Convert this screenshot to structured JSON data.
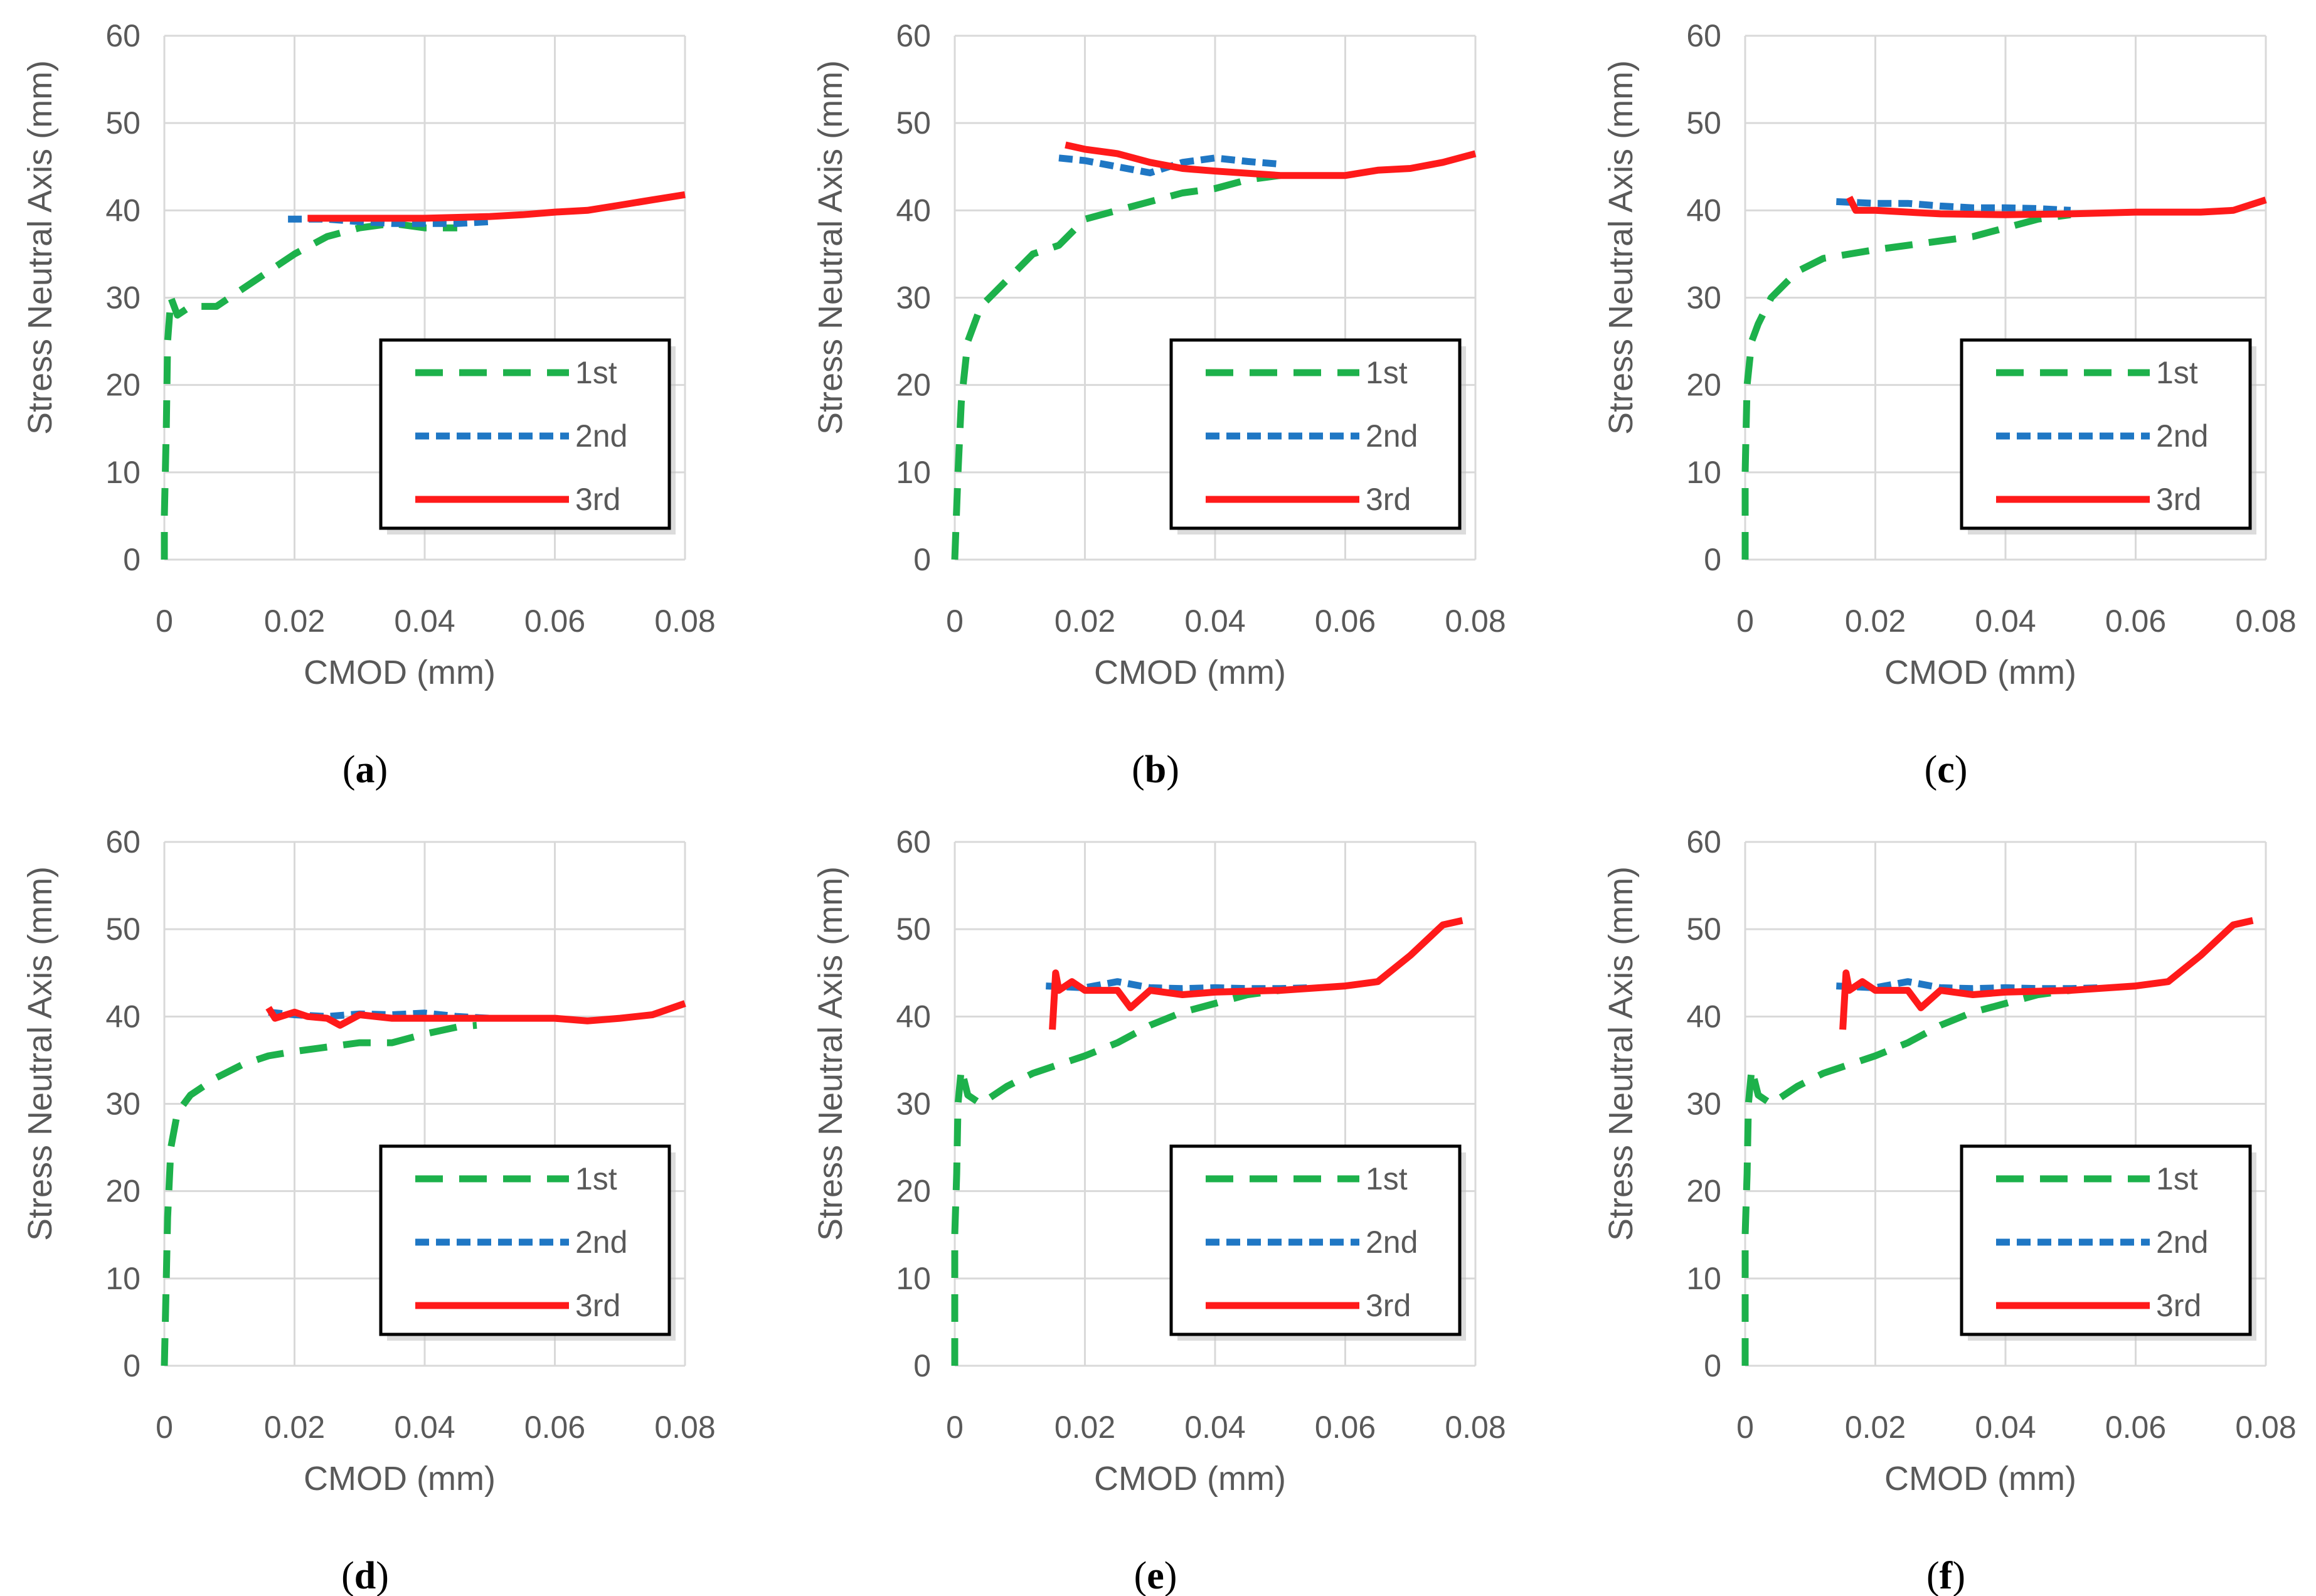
{
  "colors": {
    "first": "#1db14b",
    "second": "#1f77c4",
    "third": "#ff1a1a",
    "grid": "#d9d9d9",
    "text": "#595959"
  },
  "chart_data": [
    {
      "type": "line",
      "panel": "a",
      "xlabel": "CMOD (mm)",
      "ylabel": "Stress Neutral Axis (mm)",
      "xlim": [
        0,
        0.08
      ],
      "ylim": [
        0,
        60
      ],
      "xticks": [
        "0",
        "0.02",
        "0.04",
        "0.06",
        "0.08"
      ],
      "yticks": [
        "0",
        "10",
        "20",
        "30",
        "40",
        "50",
        "60"
      ],
      "legend_position": "bottom-right",
      "series": [
        {
          "name": "1st",
          "points": [
            [
              0,
              0
            ],
            [
              0,
              5
            ],
            [
              0.0003,
              15
            ],
            [
              0.0005,
              25
            ],
            [
              0.001,
              30
            ],
            [
              0.002,
              28
            ],
            [
              0.004,
              29
            ],
            [
              0.008,
              29
            ],
            [
              0.012,
              31
            ],
            [
              0.016,
              33
            ],
            [
              0.02,
              35
            ],
            [
              0.025,
              37
            ],
            [
              0.03,
              38
            ],
            [
              0.035,
              38.5
            ],
            [
              0.04,
              38
            ],
            [
              0.045,
              38
            ]
          ]
        },
        {
          "name": "2nd",
          "points": [
            [
              0.019,
              39
            ],
            [
              0.025,
              39
            ],
            [
              0.03,
              38.7
            ],
            [
              0.035,
              38.5
            ],
            [
              0.04,
              38.5
            ],
            [
              0.045,
              38.5
            ],
            [
              0.05,
              38.7
            ]
          ]
        },
        {
          "name": "3rd",
          "points": [
            [
              0.022,
              39.1
            ],
            [
              0.03,
              39.1
            ],
            [
              0.04,
              39.1
            ],
            [
              0.05,
              39.3
            ],
            [
              0.055,
              39.5
            ],
            [
              0.06,
              39.8
            ],
            [
              0.065,
              40
            ],
            [
              0.07,
              40.6
            ],
            [
              0.075,
              41.2
            ],
            [
              0.08,
              41.8
            ]
          ]
        }
      ]
    },
    {
      "type": "line",
      "panel": "b",
      "xlabel": "CMOD (mm)",
      "ylabel": "Stress Neutral Axis (mm)",
      "xlim": [
        0,
        0.08
      ],
      "ylim": [
        0,
        60
      ],
      "xticks": [
        "0",
        "0.02",
        "0.04",
        "0.06",
        "0.08"
      ],
      "yticks": [
        "0",
        "10",
        "20",
        "30",
        "40",
        "50",
        "60"
      ],
      "legend_position": "bottom-right",
      "series": [
        {
          "name": "1st",
          "points": [
            [
              0,
              0
            ],
            [
              0.0005,
              10
            ],
            [
              0.001,
              18
            ],
            [
              0.002,
              25
            ],
            [
              0.004,
              29
            ],
            [
              0.008,
              32
            ],
            [
              0.012,
              35
            ],
            [
              0.016,
              36
            ],
            [
              0.02,
              39
            ],
            [
              0.025,
              40
            ],
            [
              0.03,
              41
            ],
            [
              0.035,
              42
            ],
            [
              0.04,
              42.5
            ],
            [
              0.045,
              43.5
            ],
            [
              0.05,
              44
            ]
          ]
        },
        {
          "name": "2nd",
          "points": [
            [
              0.016,
              46
            ],
            [
              0.02,
              45.7
            ],
            [
              0.025,
              45
            ],
            [
              0.03,
              44.3
            ],
            [
              0.035,
              45.5
            ],
            [
              0.04,
              46
            ],
            [
              0.045,
              45.6
            ],
            [
              0.05,
              45.3
            ]
          ]
        },
        {
          "name": "3rd",
          "points": [
            [
              0.017,
              47.5
            ],
            [
              0.02,
              47
            ],
            [
              0.025,
              46.5
            ],
            [
              0.03,
              45.5
            ],
            [
              0.035,
              44.8
            ],
            [
              0.04,
              44.5
            ],
            [
              0.05,
              44
            ],
            [
              0.06,
              44
            ],
            [
              0.065,
              44.6
            ],
            [
              0.07,
              44.8
            ],
            [
              0.075,
              45.5
            ],
            [
              0.08,
              46.5
            ]
          ]
        }
      ]
    },
    {
      "type": "line",
      "panel": "c",
      "xlabel": "CMOD (mm)",
      "ylabel": "Stress Neutral Axis (mm)",
      "xlim": [
        0,
        0.08
      ],
      "ylim": [
        0,
        60
      ],
      "xticks": [
        "0",
        "0.02",
        "0.04",
        "0.06",
        "0.08"
      ],
      "yticks": [
        "0",
        "10",
        "20",
        "30",
        "40",
        "50",
        "60"
      ],
      "legend_position": "bottom-right",
      "series": [
        {
          "name": "1st",
          "points": [
            [
              0,
              0
            ],
            [
              0,
              10
            ],
            [
              0.0003,
              20
            ],
            [
              0.001,
              25
            ],
            [
              0.002,
              27
            ],
            [
              0.004,
              30
            ],
            [
              0.008,
              33
            ],
            [
              0.012,
              34.5
            ],
            [
              0.016,
              35
            ],
            [
              0.02,
              35.5
            ],
            [
              0.025,
              36
            ],
            [
              0.03,
              36.5
            ],
            [
              0.035,
              37
            ],
            [
              0.04,
              38
            ],
            [
              0.045,
              39
            ],
            [
              0.05,
              39.5
            ]
          ]
        },
        {
          "name": "2nd",
          "points": [
            [
              0.014,
              41
            ],
            [
              0.02,
              40.8
            ],
            [
              0.025,
              40.8
            ],
            [
              0.03,
              40.5
            ],
            [
              0.035,
              40.3
            ],
            [
              0.04,
              40.3
            ],
            [
              0.045,
              40.2
            ],
            [
              0.05,
              40
            ]
          ]
        },
        {
          "name": "3rd",
          "points": [
            [
              0.016,
              41.5
            ],
            [
              0.017,
              40
            ],
            [
              0.02,
              40
            ],
            [
              0.03,
              39.6
            ],
            [
              0.04,
              39.5
            ],
            [
              0.05,
              39.6
            ],
            [
              0.06,
              39.8
            ],
            [
              0.065,
              39.8
            ],
            [
              0.07,
              39.8
            ],
            [
              0.075,
              40
            ],
            [
              0.08,
              41.2
            ]
          ]
        }
      ]
    },
    {
      "type": "line",
      "panel": "d",
      "xlabel": "CMOD (mm)",
      "ylabel": "Stress Neutral Axis (mm)",
      "xlim": [
        0,
        0.08
      ],
      "ylim": [
        0,
        60
      ],
      "xticks": [
        "0",
        "0.02",
        "0.04",
        "0.06",
        "0.08"
      ],
      "yticks": [
        "0",
        "10",
        "20",
        "30",
        "40",
        "50",
        "60"
      ],
      "legend_position": "bottom-right",
      "series": [
        {
          "name": "1st",
          "points": [
            [
              0,
              0
            ],
            [
              0.0003,
              10
            ],
            [
              0.0005,
              17
            ],
            [
              0.001,
              25
            ],
            [
              0.002,
              29
            ],
            [
              0.004,
              31
            ],
            [
              0.008,
              33
            ],
            [
              0.012,
              34.5
            ],
            [
              0.016,
              35.5
            ],
            [
              0.02,
              36
            ],
            [
              0.025,
              36.5
            ],
            [
              0.03,
              37
            ],
            [
              0.035,
              37
            ],
            [
              0.04,
              38
            ],
            [
              0.045,
              38.8
            ],
            [
              0.048,
              39
            ]
          ]
        },
        {
          "name": "2nd",
          "points": [
            [
              0.016,
              40.5
            ],
            [
              0.02,
              40.2
            ],
            [
              0.025,
              40
            ],
            [
              0.03,
              40.3
            ],
            [
              0.035,
              40.2
            ],
            [
              0.04,
              40.4
            ],
            [
              0.045,
              40
            ],
            [
              0.05,
              39.8
            ]
          ]
        },
        {
          "name": "3rd",
          "points": [
            [
              0.016,
              41
            ],
            [
              0.017,
              39.8
            ],
            [
              0.02,
              40.5
            ],
            [
              0.022,
              40
            ],
            [
              0.025,
              39.8
            ],
            [
              0.027,
              39
            ],
            [
              0.03,
              40.2
            ],
            [
              0.035,
              39.8
            ],
            [
              0.04,
              39.8
            ],
            [
              0.05,
              39.8
            ],
            [
              0.06,
              39.8
            ],
            [
              0.065,
              39.5
            ],
            [
              0.07,
              39.8
            ],
            [
              0.075,
              40.2
            ],
            [
              0.08,
              41.5
            ]
          ]
        }
      ]
    },
    {
      "type": "line",
      "panel": "e",
      "xlabel": "CMOD (mm)",
      "ylabel": "Stress Neutral Axis (mm)",
      "xlim": [
        0,
        0.08
      ],
      "ylim": [
        0,
        60
      ],
      "xticks": [
        "0",
        "0.02",
        "0.04",
        "0.06",
        "0.08"
      ],
      "yticks": [
        "0",
        "10",
        "20",
        "30",
        "40",
        "50",
        "60"
      ],
      "legend_position": "bottom-right",
      "series": [
        {
          "name": "1st",
          "points": [
            [
              0,
              0
            ],
            [
              0,
              15
            ],
            [
              0.0003,
              22
            ],
            [
              0.0005,
              30
            ],
            [
              0.001,
              34
            ],
            [
              0.002,
              31
            ],
            [
              0.004,
              30
            ],
            [
              0.008,
              32
            ],
            [
              0.012,
              33.5
            ],
            [
              0.016,
              34.5
            ],
            [
              0.02,
              35.5
            ],
            [
              0.025,
              37
            ],
            [
              0.03,
              39
            ],
            [
              0.035,
              40.5
            ],
            [
              0.04,
              41.5
            ],
            [
              0.045,
              42.5
            ],
            [
              0.05,
              43
            ]
          ]
        },
        {
          "name": "2nd",
          "points": [
            [
              0.014,
              43.5
            ],
            [
              0.02,
              43.3
            ],
            [
              0.025,
              44
            ],
            [
              0.03,
              43.3
            ],
            [
              0.035,
              43.2
            ],
            [
              0.04,
              43.3
            ],
            [
              0.045,
              43.2
            ],
            [
              0.05,
              43.2
            ],
            [
              0.055,
              43.3
            ]
          ]
        },
        {
          "name": "3rd",
          "points": [
            [
              0.015,
              38.5
            ],
            [
              0.0155,
              45
            ],
            [
              0.016,
              43
            ],
            [
              0.018,
              44
            ],
            [
              0.02,
              43
            ],
            [
              0.025,
              43
            ],
            [
              0.027,
              41
            ],
            [
              0.03,
              43
            ],
            [
              0.035,
              42.5
            ],
            [
              0.04,
              42.8
            ],
            [
              0.05,
              43
            ],
            [
              0.06,
              43.5
            ],
            [
              0.065,
              44
            ],
            [
              0.07,
              47
            ],
            [
              0.075,
              50.5
            ],
            [
              0.078,
              51
            ]
          ]
        }
      ]
    },
    {
      "type": "line",
      "panel": "f",
      "xlabel": "CMOD (mm)",
      "ylabel": "Stress Neutral Axis (mm)",
      "xlim": [
        0,
        0.08
      ],
      "ylim": [
        0,
        60
      ],
      "xticks": [
        "0",
        "0.02",
        "0.04",
        "0.06",
        "0.08"
      ],
      "yticks": [
        "0",
        "10",
        "20",
        "30",
        "40",
        "50",
        "60"
      ],
      "legend_position": "bottom-right",
      "series": [
        {
          "name": "1st",
          "points": [
            [
              0,
              0
            ],
            [
              0,
              15
            ],
            [
              0.0003,
              22
            ],
            [
              0.0005,
              30
            ],
            [
              0.001,
              34
            ],
            [
              0.002,
              31
            ],
            [
              0.004,
              30
            ],
            [
              0.008,
              32
            ],
            [
              0.012,
              33.5
            ],
            [
              0.016,
              34.5
            ],
            [
              0.02,
              35.5
            ],
            [
              0.025,
              37
            ],
            [
              0.03,
              39
            ],
            [
              0.035,
              40.5
            ],
            [
              0.04,
              41.5
            ],
            [
              0.045,
              42.5
            ],
            [
              0.05,
              43
            ]
          ]
        },
        {
          "name": "2nd",
          "points": [
            [
              0.014,
              43.5
            ],
            [
              0.02,
              43.3
            ],
            [
              0.025,
              44
            ],
            [
              0.03,
              43.3
            ],
            [
              0.035,
              43.2
            ],
            [
              0.04,
              43.3
            ],
            [
              0.045,
              43.2
            ],
            [
              0.05,
              43.2
            ],
            [
              0.055,
              43.3
            ]
          ]
        },
        {
          "name": "3rd",
          "points": [
            [
              0.015,
              38.5
            ],
            [
              0.0155,
              45
            ],
            [
              0.016,
              43
            ],
            [
              0.018,
              44
            ],
            [
              0.02,
              43
            ],
            [
              0.025,
              43
            ],
            [
              0.027,
              41
            ],
            [
              0.03,
              43
            ],
            [
              0.035,
              42.5
            ],
            [
              0.04,
              42.8
            ],
            [
              0.05,
              43
            ],
            [
              0.06,
              43.5
            ],
            [
              0.065,
              44
            ],
            [
              0.07,
              47
            ],
            [
              0.075,
              50.5
            ],
            [
              0.078,
              51
            ]
          ]
        }
      ]
    }
  ]
}
